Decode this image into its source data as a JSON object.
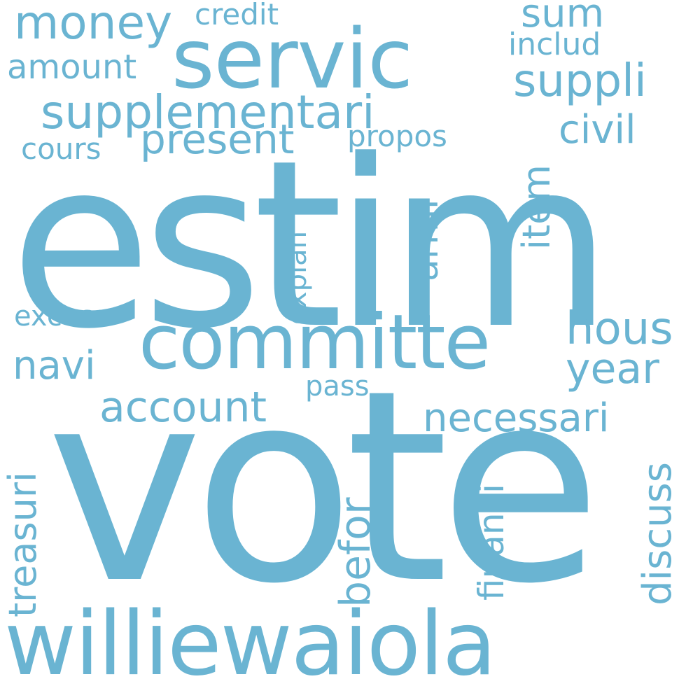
{
  "word_color": "#6ab4d2",
  "background_color": "#ffffff",
  "words": {
    "estim": "estim",
    "vote": "vote",
    "williewaiola": "williewaiola",
    "committe": "committe",
    "servic": "servic",
    "supplementari": "supplementari",
    "money": "money",
    "present": "present",
    "account": "account",
    "suppli": "suppli",
    "hous": "hous",
    "year": "year",
    "navi": "navi",
    "necessari": "necessari",
    "civil": "civil",
    "sum": "sum",
    "amount": "amount",
    "propos": "propos",
    "cours": "cours",
    "credit": "credit",
    "includ": "includ",
    "excess": "excess",
    "pass": "pass",
    "armi": "armi",
    "item": "item",
    "explan": "explan",
    "treasuri": "treasuri",
    "befor": "befor",
    "financi": "financi",
    "discuss": "discuss"
  }
}
